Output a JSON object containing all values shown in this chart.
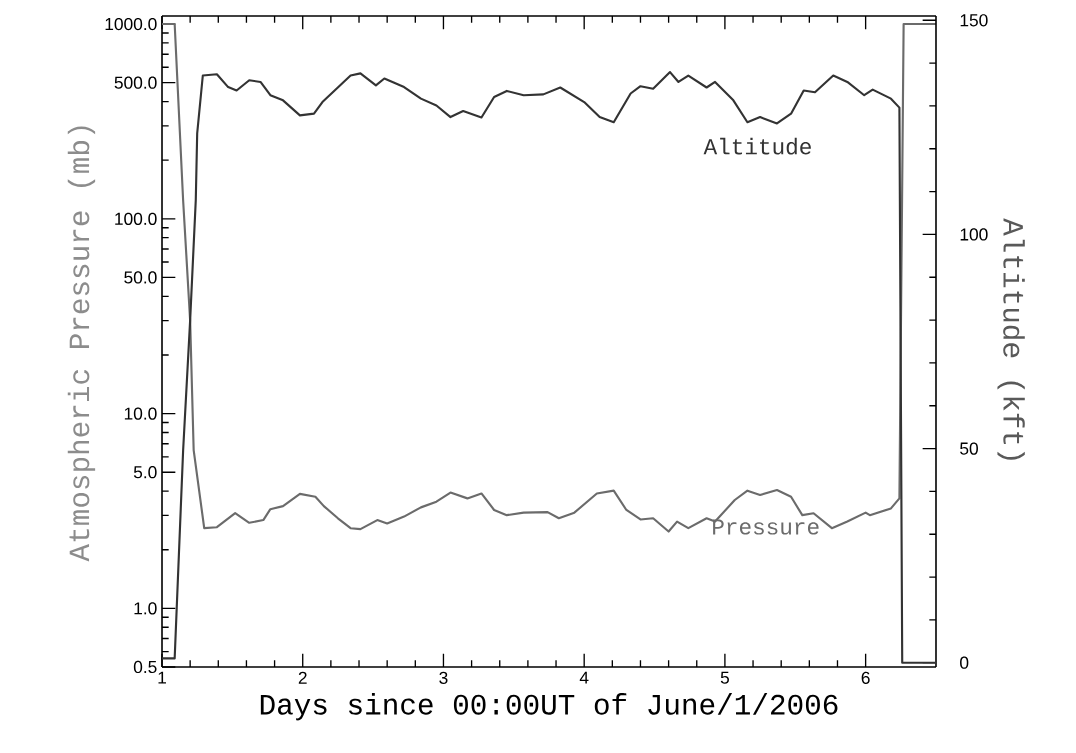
{
  "chart_data": {
    "type": "line",
    "xlabel": "Days since 00:00UT of June/1/2006",
    "ylabel": "Atmospheric Pressure (mb)",
    "y2label": "Altitude (kft)",
    "xlim": [
      1,
      6.5
    ],
    "xticks": [
      1,
      2,
      3,
      4,
      5,
      6
    ],
    "ylim": [
      0.5,
      1100
    ],
    "log": "y",
    "yticks": [
      {
        "value": 0.5,
        "label": "0.5"
      },
      {
        "value": 1,
        "label": "1.0"
      },
      {
        "value": 5,
        "label": "5.0"
      },
      {
        "value": 10,
        "label": "10.0"
      },
      {
        "value": 50,
        "label": "50.0"
      },
      {
        "value": 100,
        "label": "100.0"
      },
      {
        "value": 500,
        "label": "500.0"
      },
      {
        "value": 1000,
        "label": "1000.0"
      }
    ],
    "y2lim": [
      -1,
      151
    ],
    "y2ticks": [
      0,
      50,
      100,
      150
    ],
    "series": [
      {
        "name": "Pressure",
        "color": "#6b6b6b",
        "x": [
          1.0,
          1.09,
          1.15,
          1.2,
          1.225,
          1.3,
          1.39,
          1.52,
          1.62,
          1.72,
          1.77,
          1.86,
          1.98,
          2.09,
          2.15,
          2.25,
          2.34,
          2.41,
          2.53,
          2.6,
          2.72,
          2.84,
          2.95,
          3.05,
          3.17,
          3.27,
          3.36,
          3.45,
          3.57,
          3.74,
          3.82,
          3.93,
          4.09,
          4.21,
          4.3,
          4.4,
          4.49,
          4.6,
          4.66,
          4.74,
          4.87,
          4.93,
          5.07,
          5.16,
          5.25,
          5.37,
          5.47,
          5.55,
          5.63,
          5.76,
          5.87,
          6.0,
          6.03,
          6.18,
          6.24,
          6.27,
          6.5
        ],
        "values": [
          1000,
          1000,
          125,
          30,
          6.5,
          2.58,
          2.61,
          3.08,
          2.75,
          2.84,
          3.23,
          3.35,
          3.87,
          3.74,
          3.35,
          2.9,
          2.58,
          2.55,
          2.84,
          2.73,
          2.96,
          3.3,
          3.53,
          3.93,
          3.67,
          3.89,
          3.2,
          3.01,
          3.1,
          3.12,
          2.9,
          3.1,
          3.89,
          4.02,
          3.2,
          2.86,
          2.9,
          2.48,
          2.79,
          2.58,
          2.9,
          2.79,
          3.6,
          4.02,
          3.82,
          4.05,
          3.74,
          3.01,
          3.08,
          2.58,
          2.79,
          3.1,
          3.01,
          3.26,
          3.67,
          1000,
          1000
        ]
      },
      {
        "name": "Altitude",
        "color": "#333333",
        "axis": "y2",
        "x": [
          1.0,
          1.09,
          1.15,
          1.2,
          1.24,
          1.25,
          1.29,
          1.39,
          1.47,
          1.53,
          1.62,
          1.7,
          1.77,
          1.86,
          1.98,
          2.08,
          2.14,
          2.24,
          2.34,
          2.41,
          2.52,
          2.58,
          2.72,
          2.84,
          2.95,
          3.05,
          3.14,
          3.27,
          3.36,
          3.45,
          3.57,
          3.71,
          3.83,
          4.0,
          4.11,
          4.21,
          4.33,
          4.4,
          4.49,
          4.61,
          4.67,
          4.74,
          4.87,
          4.93,
          5.06,
          5.16,
          5.25,
          5.37,
          5.47,
          5.56,
          5.64,
          5.77,
          5.87,
          5.99,
          6.05,
          6.18,
          6.24,
          6.26,
          6.5
        ],
        "values": [
          1,
          1,
          49.5,
          80,
          108,
          123.6,
          137.1,
          137.4,
          134.4,
          133.6,
          136.0,
          135.6,
          132.5,
          131.3,
          127.8,
          128.2,
          130.9,
          134.0,
          137.1,
          137.6,
          134.8,
          136.4,
          134.4,
          131.7,
          130.1,
          127.4,
          128.8,
          127.3,
          132.1,
          133.5,
          132.5,
          132.7,
          134.3,
          130.9,
          127.4,
          126.2,
          132.9,
          134.6,
          134.0,
          137.9,
          135.6,
          137.1,
          134.3,
          135.6,
          131.3,
          126.2,
          127.4,
          125.9,
          128.2,
          133.6,
          133.2,
          137.1,
          135.6,
          132.5,
          133.8,
          131.7,
          129.6,
          0,
          0
        ]
      }
    ]
  }
}
